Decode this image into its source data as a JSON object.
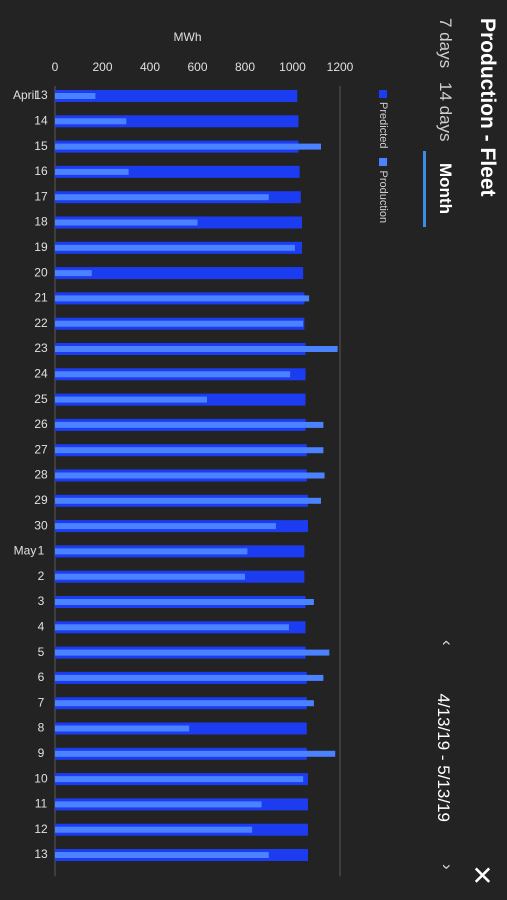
{
  "header": {
    "title": "Production - Fleet",
    "tabs": [
      {
        "label": "7 days",
        "active": false
      },
      {
        "label": "14 days",
        "active": false
      },
      {
        "label": "Month",
        "active": true
      }
    ],
    "date_range": "4/13/19 - 5/13/19",
    "prev_icon": "chevron-left-icon",
    "next_icon": "chevron-right-icon",
    "close_icon": "close-icon"
  },
  "legend": [
    {
      "label": "Predicted",
      "color": "#1c3cf2"
    },
    {
      "label": "Production",
      "color": "#4a82ff"
    }
  ],
  "chart_data": {
    "type": "bar",
    "ylabel": "MWh",
    "ylim": [
      0,
      1200
    ],
    "yticks": [
      0,
      200,
      400,
      600,
      800,
      1000,
      1200
    ],
    "categories": [
      "13",
      "14",
      "15",
      "16",
      "17",
      "18",
      "19",
      "20",
      "21",
      "22",
      "23",
      "24",
      "25",
      "26",
      "27",
      "28",
      "29",
      "30",
      "1",
      "2",
      "3",
      "4",
      "5",
      "6",
      "7",
      "8",
      "9",
      "10",
      "11",
      "12",
      "13"
    ],
    "month_labels": [
      {
        "label": "April",
        "index": 0
      },
      {
        "label": "May",
        "index": 18
      }
    ],
    "series": [
      {
        "name": "Predicted",
        "color": "#1c3cf2",
        "values": [
          1020,
          1025,
          1025,
          1030,
          1035,
          1040,
          1040,
          1045,
          1050,
          1050,
          1055,
          1055,
          1055,
          1055,
          1060,
          1060,
          1065,
          1065,
          1050,
          1050,
          1055,
          1055,
          1055,
          1060,
          1060,
          1060,
          1060,
          1065,
          1065,
          1065,
          1065
        ]
      },
      {
        "name": "Production",
        "color": "#4a82ff",
        "values": [
          170,
          300,
          1120,
          310,
          900,
          600,
          1010,
          155,
          1070,
          1045,
          1190,
          990,
          640,
          1130,
          1130,
          1135,
          1120,
          930,
          810,
          800,
          1090,
          985,
          1155,
          1130,
          1090,
          565,
          1180,
          1045,
          870,
          830,
          900
        ]
      }
    ]
  }
}
